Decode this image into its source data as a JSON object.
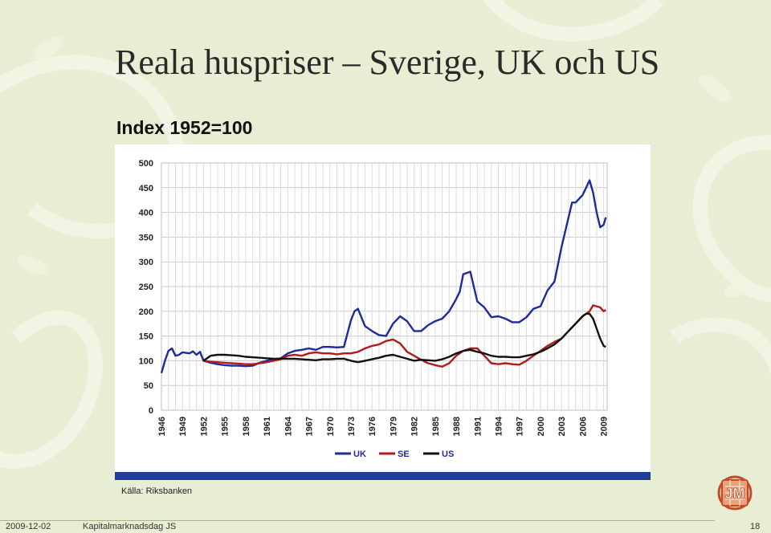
{
  "slide": {
    "title": "Reala huspriser – Sverige, UK och US",
    "source": "Källa: Riksbanken",
    "date": "2009-12-02",
    "event": "Kapitalmarknadsdag JS",
    "page_number": "18",
    "logo_icon": "jm-logo-icon"
  },
  "colors": {
    "background": "#e7eed3",
    "bar": "#1f3d9a",
    "uk": "#1f2b9a",
    "se": "#b01c1c",
    "us": "#111111"
  },
  "chart_data": {
    "type": "line",
    "title": "Index 1952=100",
    "xlabel": "",
    "ylabel": "",
    "ylim": [
      0,
      500
    ],
    "xlim": [
      1946,
      2009.5
    ],
    "y_ticks": [
      0,
      50,
      100,
      150,
      200,
      250,
      300,
      350,
      400,
      450,
      500
    ],
    "x_ticks": [
      1946,
      1949,
      1952,
      1955,
      1958,
      1961,
      1964,
      1967,
      1970,
      1973,
      1976,
      1979,
      1982,
      1985,
      1988,
      1991,
      1994,
      1997,
      2000,
      2003,
      2006,
      2009
    ],
    "grid": true,
    "legend": "bottom-center",
    "series": [
      {
        "name": "UK",
        "color": "#1f2b9a",
        "x": [
          1946,
          1946.5,
          1947,
          1947.5,
          1948,
          1948.5,
          1949,
          1950,
          1950.5,
          1951,
          1951.5,
          1952,
          1953,
          1954,
          1955,
          1956,
          1957,
          1958,
          1959,
          1960,
          1961,
          1962,
          1963,
          1964,
          1965,
          1966,
          1967,
          1968,
          1969,
          1970,
          1971,
          1972,
          1973,
          1973.5,
          1974,
          1975,
          1976,
          1977,
          1978,
          1979,
          1980,
          1981,
          1982,
          1983,
          1984,
          1985,
          1986,
          1987,
          1988,
          1988.5,
          1989,
          1990,
          1991,
          1992,
          1993,
          1994,
          1995,
          1996,
          1997,
          1998,
          1999,
          2000,
          2001,
          2002,
          2003,
          2004,
          2004.5,
          2005,
          2006,
          2006.5,
          2007,
          2007.5,
          2008,
          2008.5,
          2009,
          2009.3
        ],
        "values": [
          75,
          100,
          120,
          125,
          110,
          112,
          117,
          115,
          119,
          112,
          118,
          100,
          96,
          93,
          91,
          90,
          90,
          89,
          90,
          96,
          100,
          103,
          105,
          115,
          120,
          122,
          125,
          122,
          128,
          128,
          127,
          128,
          182,
          200,
          205,
          170,
          160,
          152,
          150,
          175,
          190,
          180,
          160,
          160,
          172,
          180,
          185,
          200,
          225,
          240,
          275,
          280,
          220,
          208,
          188,
          190,
          185,
          178,
          178,
          188,
          205,
          210,
          242,
          260,
          330,
          390,
          420,
          420,
          435,
          450,
          465,
          440,
          400,
          370,
          375,
          390
        ]
      },
      {
        "name": "SE",
        "color": "#b01c1c",
        "x": [
          1952,
          1953,
          1954,
          1955,
          1956,
          1957,
          1958,
          1959,
          1960,
          1961,
          1962,
          1963,
          1964,
          1965,
          1966,
          1967,
          1968,
          1969,
          1970,
          1971,
          1972,
          1973,
          1974,
          1975,
          1976,
          1977,
          1978,
          1979,
          1980,
          1981,
          1982,
          1983,
          1984,
          1985,
          1986,
          1987,
          1988,
          1989,
          1990,
          1991,
          1992,
          1993,
          1994,
          1995,
          1996,
          1997,
          1998,
          1999,
          2000,
          2001,
          2002,
          2003,
          2004,
          2005,
          2006,
          2007,
          2007.5,
          2008,
          2008.5,
          2009,
          2009.3
        ],
        "values": [
          100,
          98,
          97,
          96,
          95,
          94,
          93,
          93,
          95,
          97,
          100,
          103,
          110,
          112,
          110,
          115,
          117,
          115,
          115,
          113,
          115,
          115,
          118,
          125,
          130,
          133,
          140,
          143,
          135,
          118,
          110,
          102,
          95,
          91,
          88,
          95,
          110,
          120,
          125,
          125,
          110,
          95,
          93,
          95,
          93,
          92,
          100,
          110,
          120,
          130,
          138,
          145,
          160,
          175,
          190,
          200,
          212,
          210,
          208,
          200,
          203
        ]
      },
      {
        "name": "US",
        "color": "#111111",
        "x": [
          1952,
          1953,
          1954,
          1955,
          1956,
          1957,
          1958,
          1959,
          1960,
          1961,
          1962,
          1963,
          1964,
          1965,
          1966,
          1967,
          1968,
          1969,
          1970,
          1971,
          1972,
          1973,
          1974,
          1975,
          1976,
          1977,
          1978,
          1979,
          1980,
          1981,
          1982,
          1983,
          1984,
          1985,
          1986,
          1987,
          1988,
          1989,
          1990,
          1991,
          1992,
          1993,
          1994,
          1995,
          1996,
          1997,
          1998,
          1999,
          2000,
          2001,
          2002,
          2003,
          2004,
          2005,
          2006,
          2006.5,
          2007,
          2007.5,
          2008,
          2008.5,
          2009,
          2009.3
        ],
        "values": [
          100,
          110,
          112,
          112,
          111,
          110,
          108,
          107,
          106,
          105,
          104,
          104,
          104,
          104,
          103,
          102,
          101,
          103,
          103,
          104,
          104,
          100,
          97,
          100,
          103,
          106,
          110,
          112,
          108,
          104,
          100,
          102,
          101,
          100,
          103,
          108,
          115,
          120,
          122,
          118,
          115,
          110,
          108,
          108,
          107,
          107,
          110,
          113,
          118,
          125,
          133,
          145,
          160,
          175,
          190,
          195,
          195,
          185,
          165,
          145,
          130,
          128
        ]
      }
    ]
  }
}
